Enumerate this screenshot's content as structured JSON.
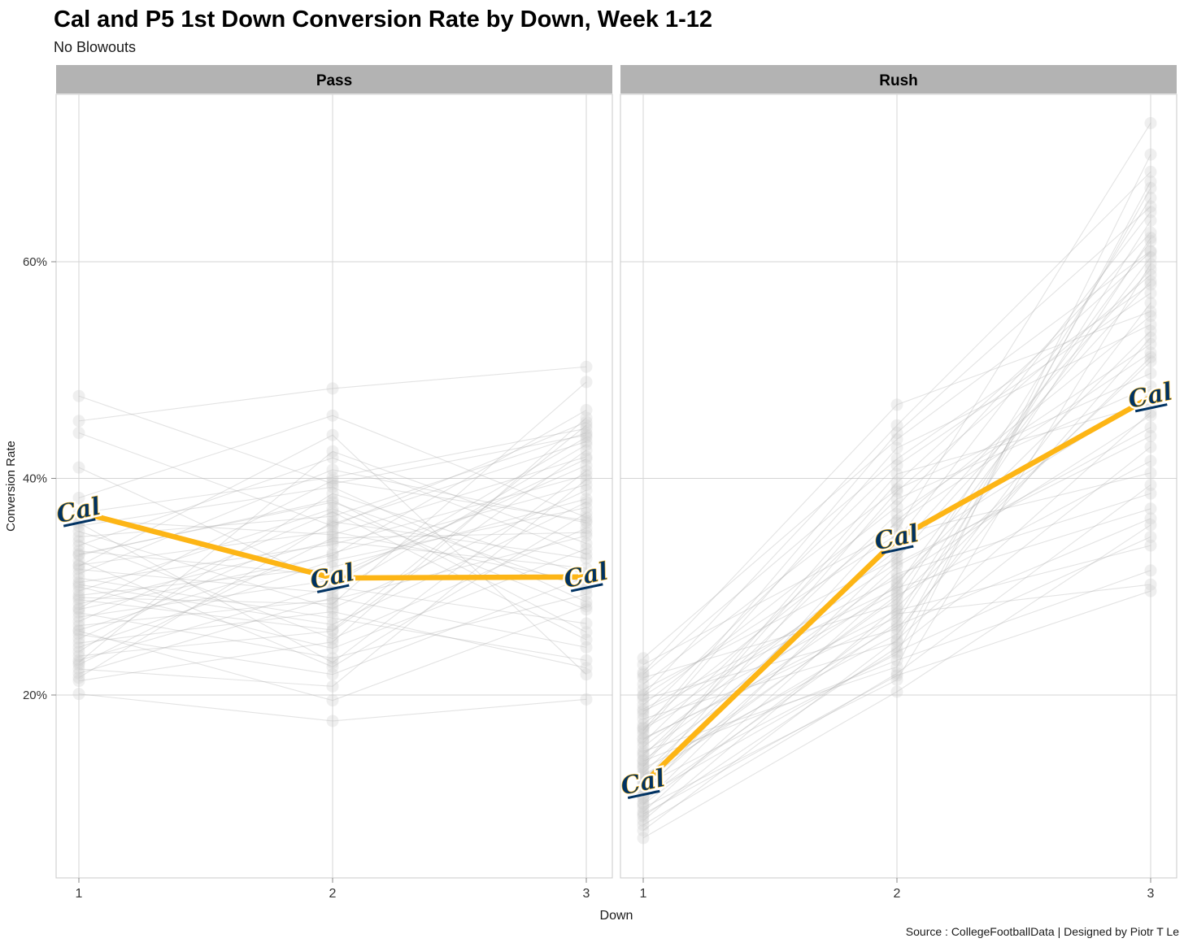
{
  "header": {
    "title": "Cal and P5 1st Down Conversion Rate by Down, Week 1-12",
    "subtitle": "No Blowouts"
  },
  "caption": "Source : CollegeFootballData | Designed by Piotr T Le",
  "colors": {
    "cal_gold": "#FDB515",
    "cal_navy": "#003262",
    "strip_bg": "#b3b3b3",
    "strip_text": "#000000",
    "grid": "#d4d4d4",
    "panel_border": "#c8c8c8",
    "axis_tick": "#888888",
    "tick_label": "#333333",
    "bg_line": "#a8a8a8",
    "bg_point": "#c9c9c9"
  },
  "chart_data": {
    "type": "line",
    "title": "Cal and P5 1st Down Conversion Rate by Down, Week 1-12",
    "subtitle": "No Blowouts",
    "xlabel": "Down",
    "ylabel": "Conversion Rate",
    "x": [
      1,
      2,
      3
    ],
    "x_tick_labels": [
      "1",
      "2",
      "3"
    ],
    "y_ticks": [
      {
        "value": 20,
        "label": "20%"
      },
      {
        "value": 40,
        "label": "40%"
      },
      {
        "value": 60,
        "label": "60%"
      }
    ],
    "ylim": [
      3,
      75.5
    ],
    "grid": true,
    "legend": "none",
    "facets": [
      {
        "key": "pass",
        "label": "Pass"
      },
      {
        "key": "rush",
        "label": "Rush"
      }
    ],
    "highlight": {
      "name": "Cal",
      "logo_text": "Cal",
      "line_color": "#FDB515",
      "logo_color": "#003262",
      "pass": [
        36.9,
        30.8,
        30.9
      ],
      "rush": [
        11.8,
        34.4,
        47.5
      ]
    },
    "background": {
      "description": "Unlabeled P5 team lines (values estimated from pixels)",
      "pass": [
        [
          47.6,
          39.5,
          44.0
        ],
        [
          45.3,
          48.3,
          50.3
        ],
        [
          44.2,
          35.6,
          45.2
        ],
        [
          41.0,
          30.2,
          43.8
        ],
        [
          38.2,
          45.8,
          36.4
        ],
        [
          36.8,
          40.1,
          44.6
        ],
        [
          36.2,
          34.8,
          42.0
        ],
        [
          35.6,
          39.2,
          28.6
        ],
        [
          35.1,
          28.0,
          38.9
        ],
        [
          34.6,
          36.5,
          44.2
        ],
        [
          34.2,
          25.2,
          35.4
        ],
        [
          33.8,
          41.9,
          33.0
        ],
        [
          33.3,
          31.0,
          41.2
        ],
        [
          32.9,
          38.0,
          25.8
        ],
        [
          32.4,
          22.6,
          36.8
        ],
        [
          32.0,
          35.1,
          30.4
        ],
        [
          31.6,
          29.4,
          43.1
        ],
        [
          31.2,
          40.8,
          35.9
        ],
        [
          30.8,
          27.1,
          23.2
        ],
        [
          30.4,
          33.9,
          40.3
        ],
        [
          30.0,
          24.3,
          33.5
        ],
        [
          29.6,
          37.2,
          27.9
        ],
        [
          29.2,
          31.8,
          38.1
        ],
        [
          28.8,
          26.0,
          44.9
        ],
        [
          28.4,
          34.2,
          31.7
        ],
        [
          28.0,
          39.8,
          36.1
        ],
        [
          27.6,
          23.4,
          29.3
        ],
        [
          27.2,
          30.6,
          41.8
        ],
        [
          26.8,
          36.9,
          25.1
        ],
        [
          26.4,
          28.8,
          34.7
        ],
        [
          26.0,
          33.1,
          39.4
        ],
        [
          25.6,
          21.9,
          30.9
        ],
        [
          25.2,
          35.8,
          43.4
        ],
        [
          24.8,
          27.7,
          22.5
        ],
        [
          24.4,
          32.4,
          37.3
        ],
        [
          24.0,
          38.6,
          31.1
        ],
        [
          23.6,
          25.9,
          42.6
        ],
        [
          23.2,
          30.0,
          26.6
        ],
        [
          22.8,
          34.5,
          35.0
        ],
        [
          22.4,
          20.8,
          39.9
        ],
        [
          22.0,
          29.0,
          24.4
        ],
        [
          21.6,
          36.0,
          32.6
        ],
        [
          21.3,
          24.9,
          45.6
        ],
        [
          20.1,
          17.6,
          19.6
        ],
        [
          23.0,
          42.5,
          34.0
        ],
        [
          25.9,
          19.5,
          28.2
        ],
        [
          27.9,
          32.9,
          46.3
        ],
        [
          30.2,
          26.5,
          37.8
        ],
        [
          33.0,
          37.8,
          29.8
        ],
        [
          35.9,
          23.0,
          40.7
        ],
        [
          31.9,
          44.0,
          21.9
        ],
        [
          29.0,
          28.4,
          48.9
        ]
      ],
      "rush": [
        [
          23.4,
          43.6,
          61.0
        ],
        [
          22.8,
          35.2,
          72.8
        ],
        [
          22.1,
          46.8,
          55.4
        ],
        [
          21.6,
          28.4,
          65.9
        ],
        [
          21.0,
          39.0,
          49.7
        ],
        [
          20.5,
          32.6,
          58.2
        ],
        [
          20.0,
          44.9,
          68.3
        ],
        [
          19.6,
          26.1,
          53.0
        ],
        [
          19.1,
          37.4,
          62.7
        ],
        [
          18.7,
          30.8,
          45.8
        ],
        [
          18.2,
          41.2,
          57.1
        ],
        [
          17.8,
          24.9,
          66.8
        ],
        [
          17.3,
          35.9,
          51.6
        ],
        [
          16.9,
          29.5,
          60.4
        ],
        [
          16.4,
          42.8,
          54.2
        ],
        [
          16.0,
          27.2,
          63.8
        ],
        [
          15.6,
          38.1,
          48.5
        ],
        [
          15.2,
          33.4,
          59.3
        ],
        [
          14.8,
          22.6,
          69.9
        ],
        [
          14.4,
          36.7,
          52.4
        ],
        [
          14.0,
          30.1,
          61.9
        ],
        [
          13.6,
          40.4,
          46.9
        ],
        [
          13.2,
          25.6,
          56.2
        ],
        [
          12.8,
          34.3,
          64.6
        ],
        [
          12.4,
          28.9,
          50.8
        ],
        [
          12.0,
          38.8,
          58.8
        ],
        [
          11.6,
          23.8,
          67.4
        ],
        [
          11.2,
          31.9,
          44.7
        ],
        [
          10.8,
          36.1,
          55.0
        ],
        [
          10.4,
          26.7,
          62.2
        ],
        [
          10.0,
          33.0,
          47.7
        ],
        [
          9.6,
          21.4,
          59.8
        ],
        [
          9.2,
          30.4,
          53.6
        ],
        [
          8.8,
          24.4,
          42.9
        ],
        [
          8.4,
          28.1,
          51.2
        ],
        [
          8.0,
          22.0,
          39.4
        ],
        [
          7.5,
          25.1,
          46.1
        ],
        [
          6.8,
          20.3,
          35.7
        ],
        [
          19.9,
          34.8,
          40.5
        ],
        [
          18.5,
          29.9,
          37.2
        ],
        [
          17.0,
          32.2,
          43.9
        ],
        [
          15.9,
          27.8,
          33.8
        ],
        [
          14.6,
          31.2,
          38.6
        ],
        [
          13.9,
          23.2,
          31.5
        ],
        [
          12.6,
          26.4,
          36.3
        ],
        [
          11.9,
          29.2,
          41.6
        ],
        [
          10.6,
          24.0,
          34.6
        ],
        [
          9.9,
          27.5,
          30.2
        ],
        [
          21.9,
          41.8,
          57.9
        ],
        [
          16.7,
          44.2,
          65.1
        ],
        [
          13.4,
          39.6,
          60.9
        ],
        [
          9.0,
          21.8,
          29.6
        ]
      ]
    }
  }
}
